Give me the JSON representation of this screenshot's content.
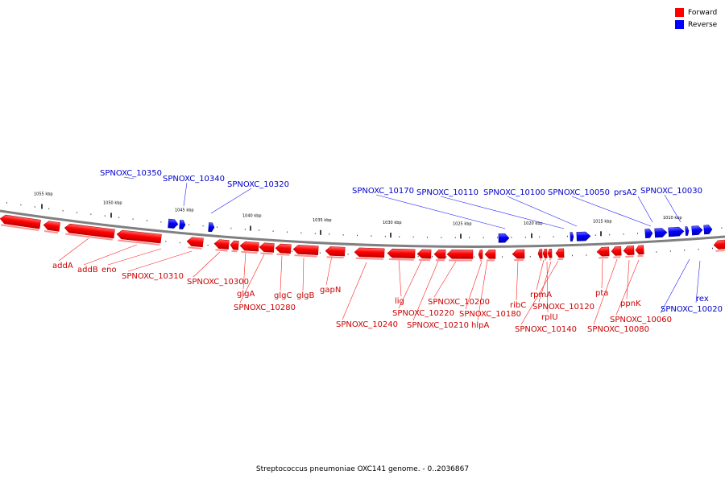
{
  "legend": {
    "forward_label": "Forward",
    "reverse_label": "Reverse",
    "forward_color": "#ff0000",
    "reverse_color": "#0000ff"
  },
  "caption": "Streptococcus pneumoniae OXC141 genome. - 0..2036867",
  "scale_labels": [
    "1055 kbp",
    "1050 kbp",
    "1045 kbp",
    "1040 kbp",
    "1035 kbp",
    "1030 kbp",
    "1025 kbp",
    "1020 kbp",
    "1015 kbp",
    "1010 kbp"
  ],
  "reverse_genes": [
    "SPNOXC_10350",
    "SPNOXC_10340",
    "SPNOXC_10320",
    "SPNOXC_10170",
    "SPNOXC_10110",
    "SPNOXC_10100",
    "SPNOXC_10050",
    "prsA2",
    "SPNOXC_10030",
    "rex",
    "SPNOXC_10020"
  ],
  "forward_genes": [
    "addA",
    "addB",
    "eno",
    "SPNOXC_10310",
    "SPNOXC_10300",
    "glgA",
    "SPNOXC_10280",
    "glgC",
    "glgB",
    "gapN",
    "SPNOXC_10240",
    "lig",
    "SPNOXC_10220",
    "SPNOXC_10210",
    "SPNOXC_10200",
    "SPNOXC_10180",
    "hlpA",
    "ribC",
    "rpmA",
    "rplU",
    "SPNOXC_10120",
    "SPNOXC_10140",
    "pta",
    "SPNOXC_10080",
    "ppnK",
    "SPNOXC_10060"
  ]
}
